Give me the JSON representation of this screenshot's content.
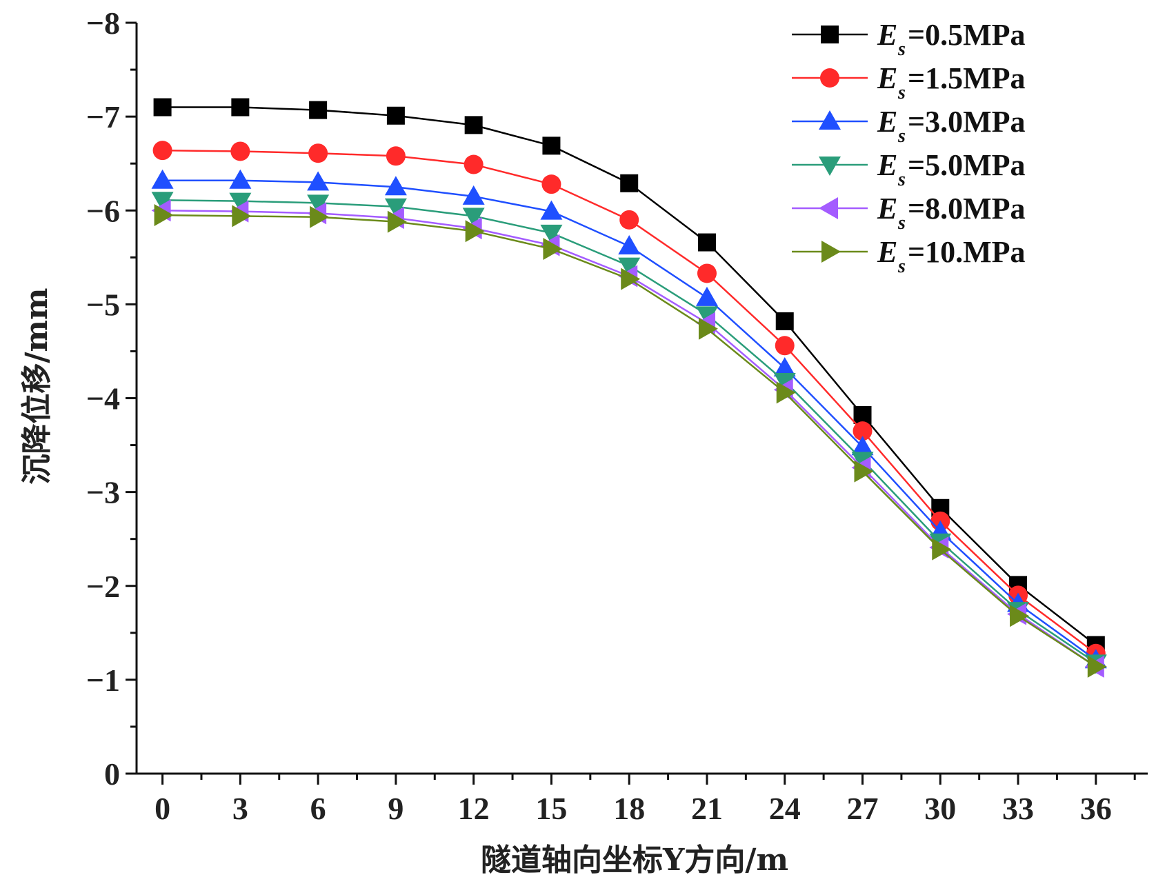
{
  "chart_data": {
    "type": "line",
    "title": "",
    "xlabel": "隧道轴向坐标Y方向/m",
    "ylabel": "沉降位移/mm",
    "x": [
      0,
      3,
      6,
      9,
      12,
      15,
      18,
      21,
      24,
      27,
      30,
      33,
      36
    ],
    "xticks": [
      "0",
      "3",
      "6",
      "9",
      "12",
      "15",
      "18",
      "21",
      "24",
      "27",
      "30",
      "33",
      "36"
    ],
    "xlim": [
      -1,
      38
    ],
    "yticks": [
      "−8",
      "−7",
      "−6",
      "−5",
      "−4",
      "−3",
      "−2",
      "−1",
      "0"
    ],
    "yticks_values": [
      -8,
      -7,
      -6,
      -5,
      -4,
      -3,
      -2,
      -1,
      0
    ],
    "ylim": [
      0,
      -8
    ],
    "y_inverted": true,
    "grid": false,
    "legend_position": "top-right",
    "series": [
      {
        "name": "Es=0.5MPa",
        "legend_main": "E",
        "legend_sub": "s",
        "legend_value": "=0.5MPa",
        "color": "#000000",
        "marker": "square",
        "values": [
          -7.1,
          -7.1,
          -7.07,
          -7.01,
          -6.91,
          -6.69,
          -6.29,
          -5.66,
          -4.82,
          -3.82,
          -2.83,
          -2.01,
          -1.37
        ]
      },
      {
        "name": "Es=1.5MPa",
        "legend_main": "E",
        "legend_sub": "s",
        "legend_value": "=1.5MPa",
        "color": "#ff2a2a",
        "marker": "circle",
        "values": [
          -6.64,
          -6.63,
          -6.61,
          -6.58,
          -6.49,
          -6.28,
          -5.9,
          -5.33,
          -4.56,
          -3.65,
          -2.69,
          -1.9,
          -1.28
        ]
      },
      {
        "name": "Es=3.0MPa",
        "legend_main": "E",
        "legend_sub": "s",
        "legend_value": "=3.0MPa",
        "color": "#1f4fff",
        "marker": "triangle-up",
        "values": [
          -6.32,
          -6.32,
          -6.3,
          -6.25,
          -6.15,
          -5.99,
          -5.62,
          -5.07,
          -4.32,
          -3.48,
          -2.58,
          -1.81,
          -1.21
        ]
      },
      {
        "name": "Es=5.0MPa",
        "legend_main": "E",
        "legend_sub": "s",
        "legend_value": "=5.0MPa",
        "color": "#2a9d7a",
        "marker": "triangle-down",
        "values": [
          -6.11,
          -6.1,
          -6.08,
          -6.04,
          -5.94,
          -5.76,
          -5.41,
          -4.89,
          -4.18,
          -3.34,
          -2.47,
          -1.74,
          -1.18
        ]
      },
      {
        "name": "Es=8.0MPa",
        "legend_main": "E",
        "legend_sub": "s",
        "legend_value": "=8.0MPa",
        "color": "#a45cff",
        "marker": "triangle-left",
        "values": [
          -6.0,
          -5.99,
          -5.97,
          -5.92,
          -5.81,
          -5.63,
          -5.3,
          -4.8,
          -4.09,
          -3.26,
          -2.41,
          -1.7,
          -1.14
        ]
      },
      {
        "name": "Es=10.MPa",
        "legend_main": "E",
        "legend_sub": "s",
        "legend_value": "=10.MPa",
        "color": "#6b8a1a",
        "marker": "triangle-right",
        "values": [
          -5.95,
          -5.94,
          -5.93,
          -5.88,
          -5.78,
          -5.59,
          -5.27,
          -4.74,
          -4.06,
          -3.22,
          -2.39,
          -1.68,
          -1.14
        ]
      }
    ]
  }
}
